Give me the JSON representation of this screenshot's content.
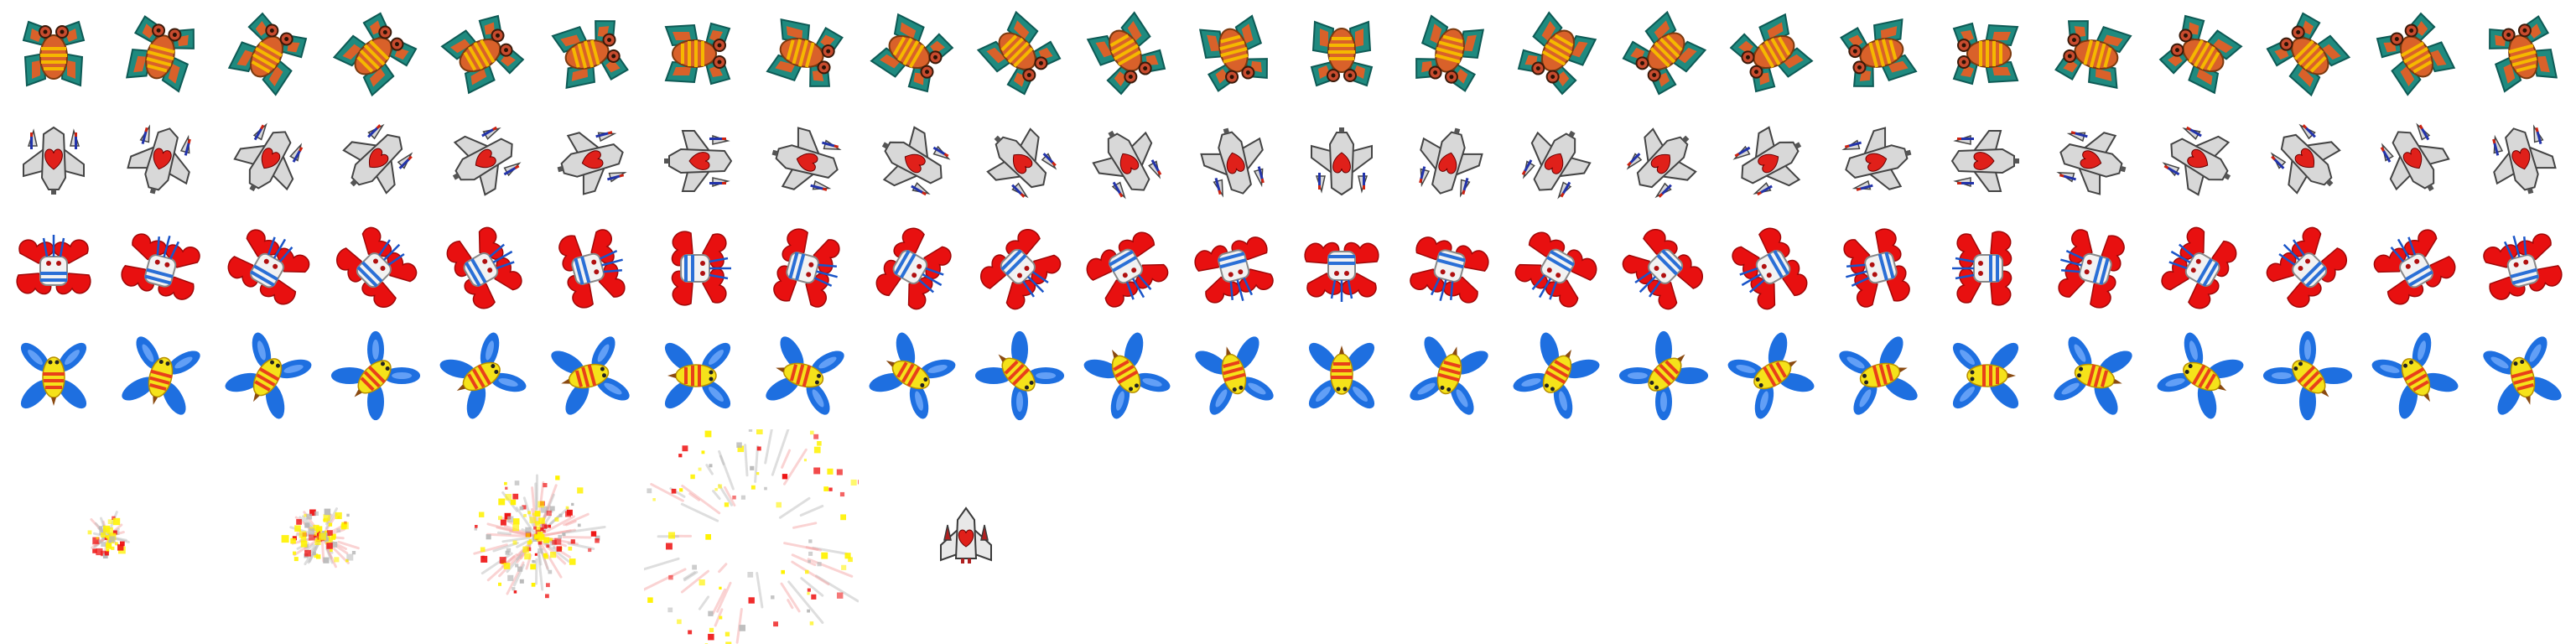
{
  "sheet": {
    "background": "#ffffff",
    "frames_per_row": 24
  },
  "enemy_rows": [
    {
      "name": "bug-enemy",
      "icon": "green-orange-bug-enemy-icon",
      "colors": {
        "shell": "#1f8a7f",
        "shell_dark": "#0e5a55",
        "body": "#d9612a",
        "stripe": "#f5b800",
        "eye": "#c84b2e"
      }
    },
    {
      "name": "silver-fighter",
      "icon": "silver-fighter-ship-icon",
      "colors": {
        "hull": "#d8d8d8",
        "hull_dark": "#444444",
        "heart": "#e0201a",
        "thruster_blue": "#2233aa",
        "thruster_red": "#cc2211"
      }
    },
    {
      "name": "red-capsule",
      "icon": "red-capsule-enemy-icon",
      "colors": {
        "wing": "#e81010",
        "wing_dark": "#a00808",
        "body": "#f2f2f2",
        "ring": "#2a6fd6",
        "antenna": "#1a55c8",
        "dot": "#b01010"
      }
    },
    {
      "name": "blue-bee",
      "icon": "blue-winged-bee-icon",
      "colors": {
        "wing": "#1e6fe0",
        "wing_light": "#7fb4ff",
        "body": "#f5e21a",
        "stripe": "#e8401a",
        "stinger": "#8a4a10"
      }
    }
  ],
  "explosion_frames": [
    {
      "name": "explosion-frame-1",
      "stage": 1
    },
    {
      "name": "explosion-frame-2",
      "stage": 2
    },
    {
      "name": "explosion-frame-3",
      "stage": 3
    },
    {
      "name": "explosion-frame-4",
      "stage": 4
    }
  ],
  "player_ship": {
    "name": "player-ship",
    "icon": "player-fighter-ship-icon",
    "colors": {
      "hull": "#e8e8e8",
      "hull_dark": "#3a3a3a",
      "heart": "#e0201a",
      "accent": "#b02020"
    }
  },
  "explosion_colors": {
    "yellow": "#fff200",
    "red": "#ee1111",
    "pink": "#f4a0a0",
    "gray": "#b8b8b8"
  }
}
